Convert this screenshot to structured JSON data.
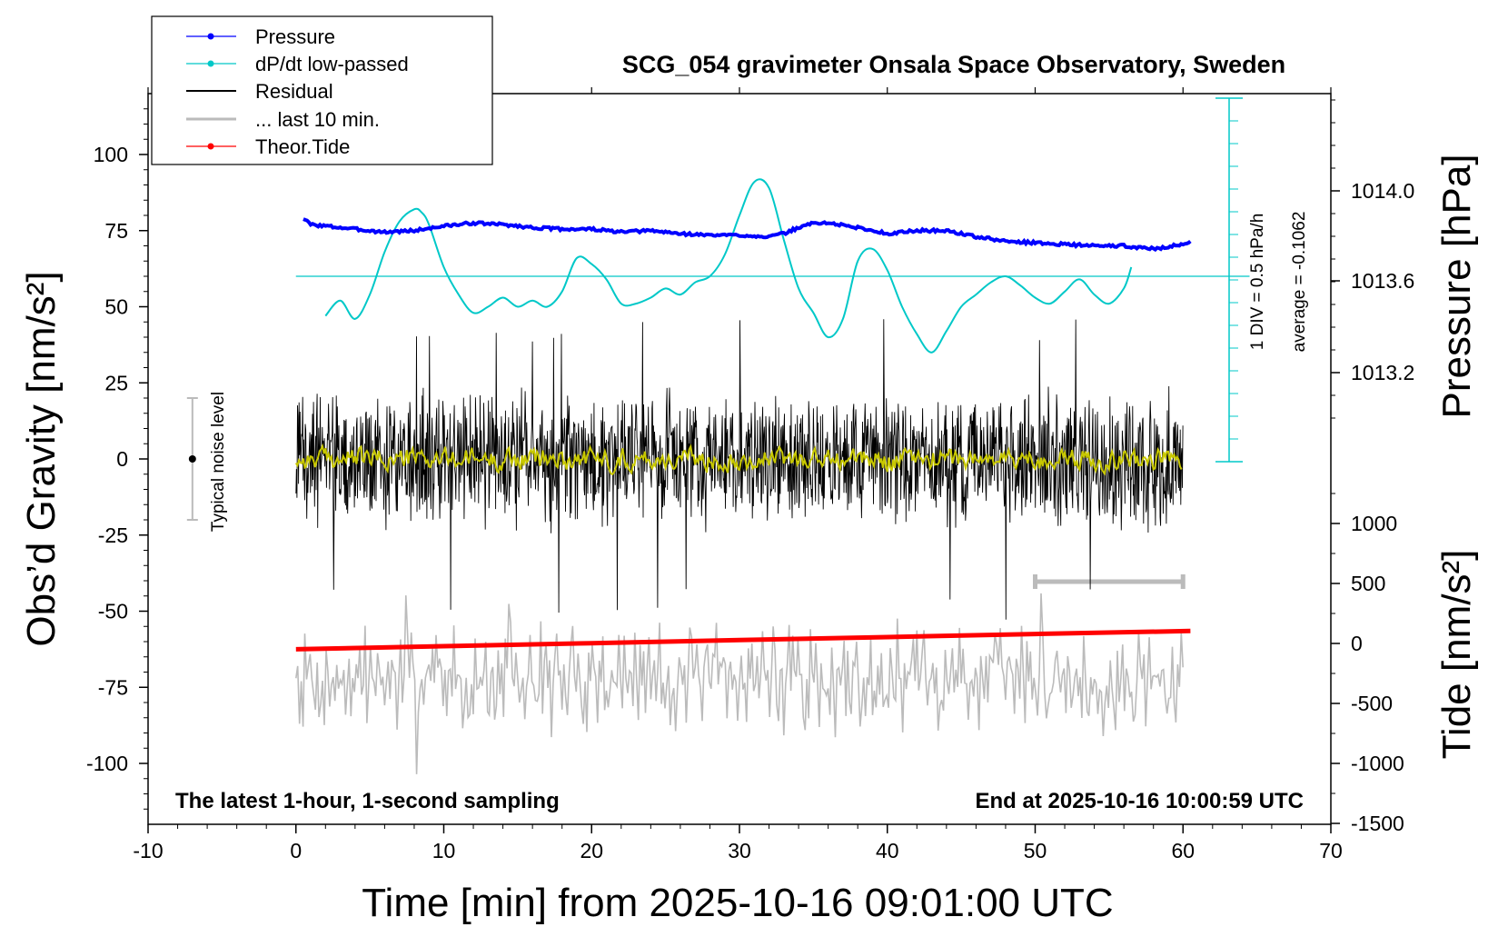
{
  "chart_data": {
    "type": "line",
    "title": "SCG_054 gravimeter Onsala Space Observatory, Sweden",
    "xlabel": "Time [min] from 2025-10-16 09:01:00 UTC",
    "ylabel_left": "Obs’d Gravity [nm/s²]",
    "ylabel_right_top": "Pressure [hPa]",
    "ylabel_right_bottom": "Tide [nm/s²]",
    "xlim": [
      -10,
      70
    ],
    "ylim": [
      -120,
      120
    ],
    "x_ticks": [
      -10,
      0,
      10,
      20,
      30,
      40,
      50,
      60,
      70
    ],
    "y_ticks": [
      100,
      75,
      50,
      25,
      0,
      -25,
      -50,
      -75,
      -100
    ],
    "pressure_ticks": [
      "1014.0",
      "1013.6",
      "1013.2"
    ],
    "tide_ticks": [
      "1000",
      "500",
      "0",
      "-500",
      "-1000",
      "-1500"
    ],
    "grid": false,
    "legend_position": "top-left",
    "legend": [
      {
        "label": "Pressure",
        "color": "#0000ff",
        "marker": true
      },
      {
        "label": "dP/dt low-passed",
        "color": "#00c8c8",
        "marker": true
      },
      {
        "label": "Residual",
        "color": "#000000",
        "marker": false
      },
      {
        "label": "... last 10 min.",
        "color": "#bbbbbb",
        "marker": false
      },
      {
        "label": "Theor.Tide",
        "color": "#ff0000",
        "marker": true
      }
    ],
    "annotations": {
      "bottom_left": "The latest 1-hour, 1-second sampling",
      "bottom_right": "End at 2025-10-16 10:00:59 UTC",
      "noise_label": "Typical noise level",
      "scale_line1": "1 DIV = 0.5 hPa/h",
      "scale_line2": "average = -0.1062"
    },
    "series": [
      {
        "name": "Pressure",
        "color": "#0000ff",
        "x": [
          0.5,
          1,
          2,
          4,
          6,
          8,
          10,
          12,
          14,
          16,
          18,
          20,
          22,
          24,
          26,
          28,
          30,
          32,
          33,
          34,
          35,
          36,
          38,
          40,
          42,
          44,
          46,
          48,
          50,
          52,
          54,
          56,
          58,
          60,
          60.5
        ],
        "y": [
          79,
          77,
          76.5,
          75.5,
          74.5,
          75,
          76.5,
          77.5,
          77,
          76,
          75.5,
          75.5,
          74.5,
          75,
          74,
          73.5,
          73.5,
          73,
          74,
          76,
          77.5,
          77.5,
          76,
          74,
          75,
          75,
          73,
          71.5,
          71,
          70.5,
          70,
          70,
          69,
          70.5,
          71.5
        ]
      },
      {
        "name": "dP/dt low-passed",
        "color": "#00c8c8",
        "x": [
          2,
          3,
          4,
          5,
          6,
          7,
          8,
          8.5,
          9,
          10,
          11,
          12,
          13,
          14,
          15,
          16,
          17,
          18,
          19,
          20,
          21,
          22,
          23,
          24,
          25,
          26,
          27,
          28,
          29,
          30,
          31,
          32,
          33,
          34,
          35,
          36,
          37,
          38,
          39,
          40,
          41,
          42,
          43,
          44,
          45,
          46,
          47,
          48,
          49,
          50,
          51,
          52,
          53,
          54,
          55,
          56,
          56.5
        ],
        "y": [
          47,
          52,
          46,
          54,
          68,
          78,
          82,
          81,
          77,
          63,
          54,
          48,
          50,
          53,
          50,
          52,
          50,
          55,
          66,
          64,
          59,
          51,
          51,
          53,
          56,
          54,
          58,
          60,
          67,
          80,
          91,
          89,
          72,
          56,
          48,
          40,
          46,
          65,
          69,
          62,
          50,
          41,
          35,
          42,
          50,
          54,
          58,
          60,
          57,
          53,
          51,
          55,
          59,
          54,
          51,
          56,
          63
        ],
        "reference_line": 60
      },
      {
        "name": "Theor.Tide",
        "color": "#ff0000",
        "x": [
          0,
          10,
          20,
          30,
          40,
          50,
          60.5
        ],
        "y": [
          -62.5,
          -61.5,
          -60.5,
          -59.5,
          -58.5,
          -57.5,
          -56.5
        ]
      }
    ],
    "residual_envelope": {
      "color": "#000000",
      "typical_min": -25,
      "typical_max": 25,
      "extreme_min": -53,
      "extreme_max": 47
    },
    "last_10_min_trace": {
      "color": "#bbbbbb",
      "center": -72,
      "amplitude": 20,
      "x_range": [
        50,
        60
      ]
    },
    "smoothed_residual": {
      "color": "#c8c800",
      "amplitude": 3
    },
    "noise_level": {
      "x": -7,
      "range": [
        -20,
        20
      ]
    }
  }
}
